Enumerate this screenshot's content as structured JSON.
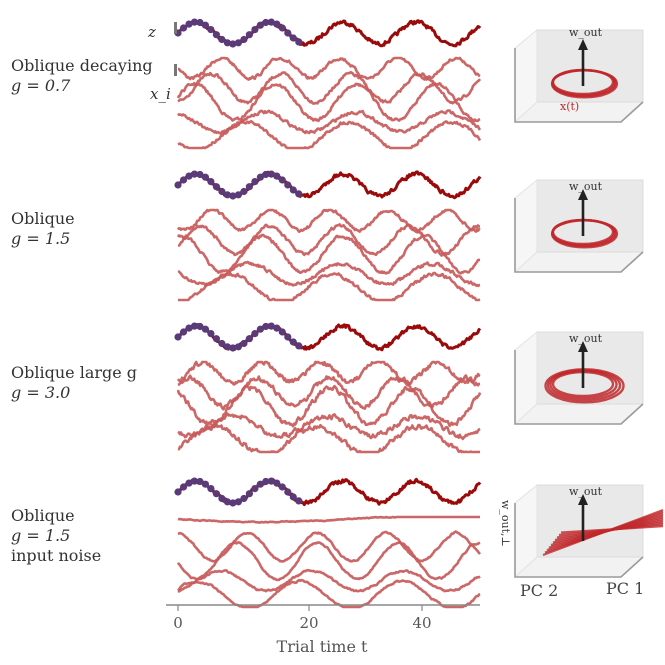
{
  "rows": [
    {
      "label": [
        "Oblique decaying",
        "g = 0.7"
      ]
    },
    {
      "label": [
        "Oblique",
        "g = 1.5"
      ]
    },
    {
      "label": [
        "Oblique large g",
        "g = 3.0"
      ]
    },
    {
      "label": [
        "Oblique",
        "g = 1.5",
        "input noise"
      ]
    }
  ],
  "axis": {
    "z_label": "z",
    "x_label": "x_i",
    "xlabel": "Trial time t",
    "ticks": [
      "0",
      "20",
      "40"
    ]
  },
  "box3d": {
    "wout_label": "w_out",
    "xt_label": "x(t)",
    "wout_perp_label": "w_out,⊥",
    "pc1_label": "PC 1",
    "pc2_label": "PC 2"
  },
  "colors": {
    "output": "#9b0a0a",
    "units": "#c85a5a",
    "target": "#5b3a78",
    "traj3d": "#c0282c",
    "arrow": "#222222",
    "axis": "#888888"
  },
  "chart_data": {
    "type": "line",
    "xlabel": "Trial time t",
    "xlim": [
      0,
      50
    ],
    "xticks": [
      0,
      20,
      40
    ],
    "panels": [
      {
        "row": "Oblique decaying g = 0.7",
        "output_period": 12.0,
        "target_points_until": 20,
        "n_units": 5
      },
      {
        "row": "Oblique g = 1.5",
        "output_period": 12.0,
        "target_points_until": 20,
        "n_units": 5
      },
      {
        "row": "Oblique large g g = 3.0",
        "output_period": 12.0,
        "target_points_until": 20,
        "n_units": 5
      },
      {
        "row": "Oblique g = 1.5 input noise",
        "output_period": 12.0,
        "target_points_until": 20,
        "n_units": 5
      }
    ]
  }
}
